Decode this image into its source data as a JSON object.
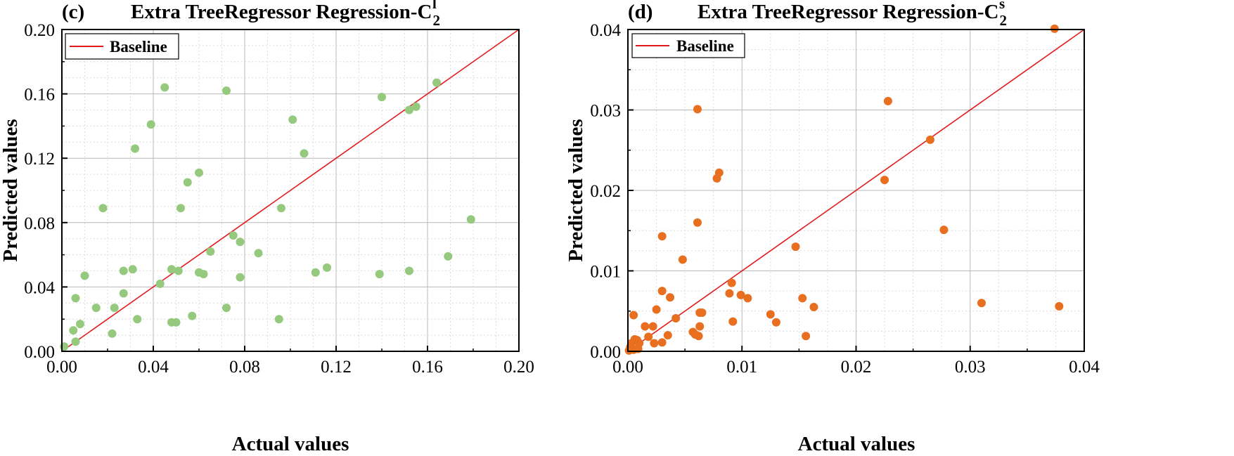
{
  "chart_data": [
    {
      "type": "scatter",
      "panel_label": "(c)",
      "title": "Extra TreeRegressor Regression-C",
      "title_sub": "2",
      "title_sup": "l",
      "xlabel": "Actual values",
      "ylabel": "Predicted values",
      "xlim": [
        0,
        0.2
      ],
      "ylim": [
        0,
        0.2
      ],
      "xticks": [
        "0.00",
        "0.04",
        "0.08",
        "0.12",
        "0.16",
        "0.20"
      ],
      "yticks": [
        "0.00",
        "0.04",
        "0.08",
        "0.12",
        "0.16",
        "0.20"
      ],
      "marker_color": "#95c97d",
      "baseline_color": "#e31a1c",
      "legend": {
        "label": "Baseline",
        "position": "top-left"
      },
      "baseline": [
        [
          0,
          0
        ],
        [
          0.2,
          0.2
        ]
      ],
      "points": [
        [
          0.001,
          0.003
        ],
        [
          0.005,
          0.013
        ],
        [
          0.006,
          0.006
        ],
        [
          0.006,
          0.033
        ],
        [
          0.008,
          0.017
        ],
        [
          0.01,
          0.047
        ],
        [
          0.015,
          0.027
        ],
        [
          0.018,
          0.089
        ],
        [
          0.022,
          0.011
        ],
        [
          0.023,
          0.027
        ],
        [
          0.027,
          0.05
        ],
        [
          0.027,
          0.036
        ],
        [
          0.031,
          0.051
        ],
        [
          0.032,
          0.126
        ],
        [
          0.033,
          0.02
        ],
        [
          0.039,
          0.141
        ],
        [
          0.043,
          0.042
        ],
        [
          0.045,
          0.164
        ],
        [
          0.048,
          0.051
        ],
        [
          0.048,
          0.018
        ],
        [
          0.05,
          0.018
        ],
        [
          0.051,
          0.05
        ],
        [
          0.052,
          0.089
        ],
        [
          0.055,
          0.105
        ],
        [
          0.057,
          0.022
        ],
        [
          0.06,
          0.111
        ],
        [
          0.06,
          0.049
        ],
        [
          0.062,
          0.048
        ],
        [
          0.065,
          0.062
        ],
        [
          0.072,
          0.162
        ],
        [
          0.072,
          0.027
        ],
        [
          0.075,
          0.072
        ],
        [
          0.078,
          0.046
        ],
        [
          0.078,
          0.068
        ],
        [
          0.086,
          0.061
        ],
        [
          0.095,
          0.02
        ],
        [
          0.096,
          0.089
        ],
        [
          0.101,
          0.144
        ],
        [
          0.106,
          0.123
        ],
        [
          0.111,
          0.049
        ],
        [
          0.116,
          0.052
        ],
        [
          0.139,
          0.048
        ],
        [
          0.14,
          0.158
        ],
        [
          0.152,
          0.15
        ],
        [
          0.152,
          0.05
        ],
        [
          0.155,
          0.152
        ],
        [
          0.164,
          0.167
        ],
        [
          0.169,
          0.059
        ],
        [
          0.179,
          0.082
        ]
      ]
    },
    {
      "type": "scatter",
      "panel_label": "(d)",
      "title": "Extra TreeRegressor Regression-C",
      "title_sub": "2",
      "title_sup": "s",
      "xlabel": "Actual values",
      "ylabel": "Predicted values",
      "xlim": [
        0,
        0.04
      ],
      "ylim": [
        0,
        0.04
      ],
      "xticks": [
        "0.00",
        "0.01",
        "0.02",
        "0.03",
        "0.04"
      ],
      "yticks": [
        "0.00",
        "0.01",
        "0.02",
        "0.03",
        "0.04"
      ],
      "marker_color": "#e86f1f",
      "baseline_color": "#e31a1c",
      "legend": {
        "label": "Baseline",
        "position": "top-left"
      },
      "baseline": [
        [
          0,
          0
        ],
        [
          0.04,
          0.04
        ]
      ],
      "points": [
        [
          0.0001,
          0.0001
        ],
        [
          0.0002,
          0.0005
        ],
        [
          0.0003,
          0.001
        ],
        [
          0.0004,
          0.0003
        ],
        [
          0.0005,
          0.0002
        ],
        [
          0.0005,
          0.0045
        ],
        [
          0.0006,
          0.0015
        ],
        [
          0.0008,
          0.0014
        ],
        [
          0.0009,
          0.0003
        ],
        [
          0.001,
          0.001
        ],
        [
          0.0015,
          0.0031
        ],
        [
          0.0018,
          0.0018
        ],
        [
          0.0022,
          0.0031
        ],
        [
          0.0023,
          0.001
        ],
        [
          0.0025,
          0.0052
        ],
        [
          0.003,
          0.0075
        ],
        [
          0.003,
          0.0143
        ],
        [
          0.003,
          0.0011
        ],
        [
          0.0035,
          0.002
        ],
        [
          0.0037,
          0.0067
        ],
        [
          0.0042,
          0.0041
        ],
        [
          0.0048,
          0.0114
        ],
        [
          0.0057,
          0.0024
        ],
        [
          0.0059,
          0.0021
        ],
        [
          0.0061,
          0.0301
        ],
        [
          0.0061,
          0.016
        ],
        [
          0.0062,
          0.0019
        ],
        [
          0.0063,
          0.0048
        ],
        [
          0.0063,
          0.0031
        ],
        [
          0.0065,
          0.0048
        ],
        [
          0.0078,
          0.0215
        ],
        [
          0.008,
          0.0222
        ],
        [
          0.0089,
          0.0072
        ],
        [
          0.0091,
          0.0085
        ],
        [
          0.0092,
          0.0037
        ],
        [
          0.0099,
          0.007
        ],
        [
          0.0105,
          0.0066
        ],
        [
          0.0125,
          0.0046
        ],
        [
          0.013,
          0.0036
        ],
        [
          0.0147,
          0.013
        ],
        [
          0.0153,
          0.0066
        ],
        [
          0.0156,
          0.0019
        ],
        [
          0.0163,
          0.0055
        ],
        [
          0.0225,
          0.0213
        ],
        [
          0.0228,
          0.0311
        ],
        [
          0.0265,
          0.0263
        ],
        [
          0.0277,
          0.0151
        ],
        [
          0.031,
          0.006
        ],
        [
          0.0374,
          0.0401
        ],
        [
          0.0378,
          0.0056
        ]
      ]
    }
  ]
}
